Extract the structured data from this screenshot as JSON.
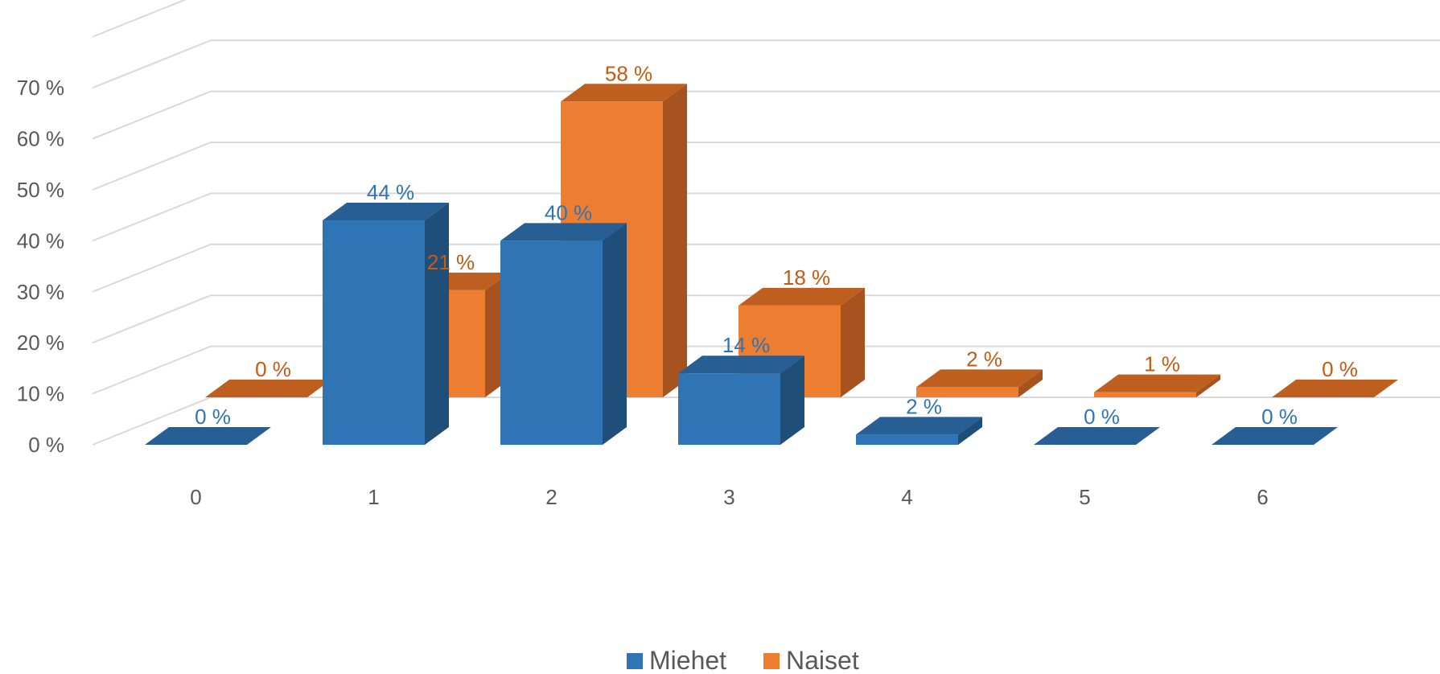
{
  "chart_data": {
    "type": "bar",
    "categories": [
      "0",
      "1",
      "2",
      "3",
      "4",
      "5",
      "6"
    ],
    "series": [
      {
        "name": "Miehet",
        "values": [
          0,
          44,
          40,
          14,
          2,
          0,
          0
        ],
        "labels": [
          "0 %",
          "44 %",
          "40 %",
          "14 %",
          "2 %",
          "0 %",
          "0 %"
        ]
      },
      {
        "name": "Naiset",
        "values": [
          0,
          21,
          58,
          18,
          2,
          1,
          0
        ],
        "labels": [
          "0 %",
          "21 %",
          "58 %",
          "18 %",
          "2 %",
          "1 %",
          "0 %"
        ]
      }
    ],
    "ylim": [
      0,
      70
    ],
    "y_ticks": [
      "0 %",
      "10 %",
      "20 %",
      "30 %",
      "40 %",
      "50 %",
      "60 %",
      "70 %"
    ],
    "title": "",
    "xlabel": "",
    "ylabel": "",
    "legend_position": "bottom",
    "grid": true,
    "colors": {
      "Miehet": "#2f74b5",
      "Miehet_top": "#275f94",
      "Miehet_side": "#1f4e79",
      "Miehet_label": "#2f74b5",
      "Naiset": "#ed7d31",
      "Naiset_top": "#bf5f1f",
      "Naiset_side": "#a65320",
      "Naiset_label": "#c55a11",
      "grid": "#d9d9d9",
      "axis_text": "#595959"
    }
  }
}
